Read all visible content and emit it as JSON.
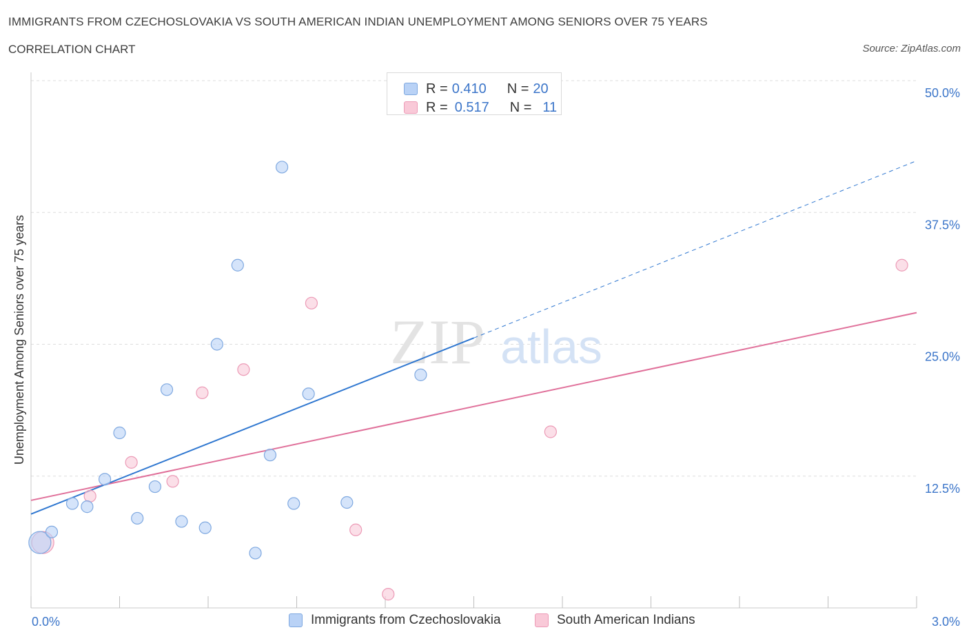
{
  "header": {
    "title": "IMMIGRANTS FROM CZECHOSLOVAKIA VS SOUTH AMERICAN INDIAN UNEMPLOYMENT AMONG SENIORS OVER 75 YEARS",
    "subtitle": "CORRELATION CHART",
    "source": "Source: ZipAtlas.com"
  },
  "legend_top": {
    "rows": [
      {
        "r_label": "R =",
        "r_value": "0.410",
        "n_label": "N =",
        "n_value": "20"
      },
      {
        "r_label": "R =",
        "r_value": "0.517",
        "n_label": "N =",
        "n_value": "11"
      }
    ]
  },
  "legend_bottom": {
    "items": [
      "Immigrants from Czechoslovakia",
      "South American Indians"
    ]
  },
  "colors": {
    "blue_fill": "#b9d2f6",
    "blue_stroke": "#7ea8e0",
    "blue_line": "#2f77d0",
    "pink_fill": "#f9c9d8",
    "pink_stroke": "#ec9ab6",
    "pink_line": "#e0709a",
    "axis_label": "#3b75c9",
    "grid": "#dcdcdc"
  },
  "watermark": {
    "zip": "ZIP",
    "atlas": "atlas"
  },
  "chart_data": {
    "type": "scatter",
    "title": "IMMIGRANTS FROM CZECHOSLOVAKIA VS SOUTH AMERICAN INDIAN UNEMPLOYMENT AMONG SENIORS OVER 75 YEARS",
    "xlabel": "",
    "ylabel": "Unemployment Among Seniors over 75 years",
    "xlim": [
      0,
      3.0
    ],
    "ylim": [
      0,
      50
    ],
    "x_tick_labels": [
      "0.0%",
      "3.0%"
    ],
    "y_ticks": [
      12.5,
      25.0,
      37.5,
      50.0
    ],
    "y_tick_labels": [
      "12.5%",
      "25.0%",
      "37.5%",
      "50.0%"
    ],
    "grid": true,
    "legend": "top-center",
    "series": [
      {
        "name": "Immigrants from Czechoslovakia",
        "color": "#b9d2f6",
        "R": 0.41,
        "N": 20,
        "points": [
          {
            "x": 0.03,
            "y": 6.2,
            "size": "large"
          },
          {
            "x": 0.07,
            "y": 7.2
          },
          {
            "x": 0.14,
            "y": 9.9
          },
          {
            "x": 0.19,
            "y": 9.6
          },
          {
            "x": 0.25,
            "y": 12.2
          },
          {
            "x": 0.3,
            "y": 16.6
          },
          {
            "x": 0.36,
            "y": 8.5
          },
          {
            "x": 0.42,
            "y": 11.5
          },
          {
            "x": 0.46,
            "y": 20.7
          },
          {
            "x": 0.51,
            "y": 8.2
          },
          {
            "x": 0.59,
            "y": 7.6
          },
          {
            "x": 0.63,
            "y": 25.0
          },
          {
            "x": 0.7,
            "y": 32.5
          },
          {
            "x": 0.76,
            "y": 5.2
          },
          {
            "x": 0.81,
            "y": 14.5
          },
          {
            "x": 0.85,
            "y": 41.8
          },
          {
            "x": 0.89,
            "y": 9.9
          },
          {
            "x": 0.94,
            "y": 20.3
          },
          {
            "x": 1.07,
            "y": 10.0
          },
          {
            "x": 1.32,
            "y": 22.1
          }
        ],
        "trend": {
          "x_start": 0.0,
          "y_start": 8.9,
          "x_end_solid": 1.5,
          "y_end_solid": 25.6,
          "x_end_dashed": 3.0,
          "y_end_dashed": 42.4
        }
      },
      {
        "name": "South American Indians",
        "color": "#f9c9d8",
        "R": 0.517,
        "N": 11,
        "points": [
          {
            "x": 0.04,
            "y": 6.2,
            "size": "large"
          },
          {
            "x": 0.2,
            "y": 10.6
          },
          {
            "x": 0.34,
            "y": 13.8
          },
          {
            "x": 0.48,
            "y": 12.0
          },
          {
            "x": 0.58,
            "y": 20.4
          },
          {
            "x": 0.72,
            "y": 22.6
          },
          {
            "x": 0.95,
            "y": 28.9
          },
          {
            "x": 1.1,
            "y": 7.4
          },
          {
            "x": 1.21,
            "y": 1.3
          },
          {
            "x": 1.76,
            "y": 16.7
          },
          {
            "x": 2.95,
            "y": 32.5
          }
        ],
        "trend": {
          "x_start": 0.0,
          "y_start": 10.2,
          "x_end": 3.0,
          "y_end": 28.0
        }
      }
    ]
  }
}
